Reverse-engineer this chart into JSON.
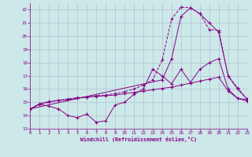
{
  "bg_color": "#cce8e8",
  "grid_color": "#aab8cc",
  "line_color": "#880088",
  "xlabel": "Windchill (Refroidissement éolien,°C)",
  "xlim": [
    0,
    23
  ],
  "ylim": [
    13,
    22.5
  ],
  "yticks": [
    13,
    14,
    15,
    16,
    17,
    18,
    19,
    20,
    21,
    22
  ],
  "xticks": [
    0,
    1,
    2,
    3,
    4,
    5,
    6,
    7,
    8,
    9,
    10,
    11,
    12,
    13,
    14,
    15,
    16,
    17,
    18,
    19,
    20,
    21,
    22,
    23
  ],
  "s1x": [
    0,
    1,
    2,
    3,
    4,
    5,
    6,
    7,
    8,
    9,
    10,
    11,
    12,
    13,
    14,
    15,
    16,
    17,
    18,
    19,
    20,
    21,
    22,
    23
  ],
  "s1y": [
    14.5,
    14.85,
    14.7,
    14.5,
    14.0,
    13.85,
    14.1,
    13.5,
    13.6,
    14.8,
    15.0,
    15.6,
    16.0,
    17.5,
    17.0,
    16.4,
    17.5,
    16.5,
    17.5,
    18.0,
    18.3,
    16.0,
    15.3,
    15.2
  ],
  "s2x": [
    0,
    1,
    2,
    3,
    4,
    5,
    6,
    7,
    8,
    9,
    10,
    11,
    12,
    13,
    14,
    15,
    16,
    17,
    18,
    19,
    20,
    21,
    22,
    23
  ],
  "s2y": [
    14.5,
    14.9,
    15.05,
    15.15,
    15.2,
    15.3,
    15.4,
    15.45,
    15.5,
    15.55,
    15.65,
    15.75,
    15.85,
    15.95,
    16.05,
    16.15,
    16.3,
    16.45,
    16.6,
    16.75,
    16.9,
    15.85,
    15.3,
    15.1
  ],
  "s3x": [
    0,
    1,
    2,
    3,
    4,
    5,
    6,
    7,
    8,
    9,
    10,
    11,
    12,
    13,
    14,
    15,
    16,
    17,
    18,
    19,
    20,
    21,
    22,
    23
  ],
  "s3y": [
    14.5,
    14.85,
    15.0,
    15.15,
    15.25,
    15.35,
    15.4,
    15.5,
    15.55,
    15.65,
    15.8,
    16.0,
    16.3,
    16.7,
    18.2,
    21.3,
    22.2,
    22.15,
    21.7,
    20.5,
    20.45,
    17.0,
    16.1,
    15.25
  ],
  "s4x": [
    0,
    14,
    15,
    16,
    17,
    18,
    19,
    20,
    21,
    22,
    23
  ],
  "s4y": [
    14.5,
    16.7,
    18.3,
    21.5,
    22.15,
    21.7,
    21.0,
    20.3,
    17.0,
    16.0,
    15.25
  ]
}
